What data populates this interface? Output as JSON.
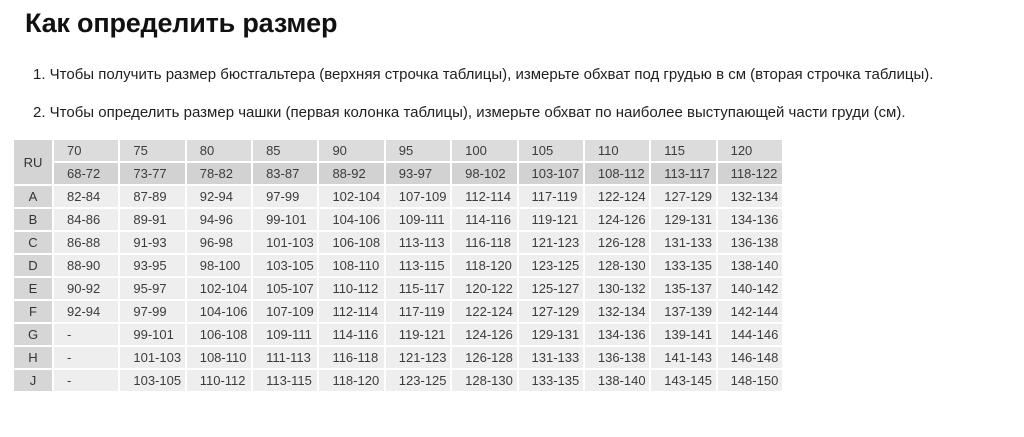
{
  "page": {
    "title": "Как определить размер"
  },
  "instructions": [
    "1. Чтобы получить размер бюстгальтера (верхняя строчка таблицы), измерьте обхват под грудью в см (вторая строчка таблицы).",
    "2. Чтобы определить размер чашки (первая колонка таблицы), измерьте обхват по наиболее выступающей части груди (см)."
  ],
  "size_table": {
    "corner_label": "RU",
    "band_sizes": [
      "70",
      "75",
      "80",
      "85",
      "90",
      "95",
      "100",
      "105",
      "110",
      "115",
      "120"
    ],
    "underbust_ranges": [
      "68-72",
      "73-77",
      "78-82",
      "83-87",
      "88-92",
      "93-97",
      "98-102",
      "103-107",
      "108-112",
      "113-117",
      "118-122"
    ],
    "cup_rows": [
      {
        "cup": "A",
        "values": [
          "82-84",
          "87-89",
          "92-94",
          "97-99",
          "102-104",
          "107-109",
          "112-114",
          "117-119",
          "122-124",
          "127-129",
          "132-134"
        ]
      },
      {
        "cup": "B",
        "values": [
          "84-86",
          "89-91",
          "94-96",
          "99-101",
          "104-106",
          "109-111",
          "114-116",
          "119-121",
          "124-126",
          "129-131",
          "134-136"
        ]
      },
      {
        "cup": "C",
        "values": [
          "86-88",
          "91-93",
          "96-98",
          "101-103",
          "106-108",
          "113-113",
          "116-118",
          "121-123",
          "126-128",
          "131-133",
          "136-138"
        ]
      },
      {
        "cup": "D",
        "values": [
          "88-90",
          "93-95",
          "98-100",
          "103-105",
          "108-110",
          "113-115",
          "118-120",
          "123-125",
          "128-130",
          "133-135",
          "138-140"
        ]
      },
      {
        "cup": "E",
        "values": [
          "90-92",
          "95-97",
          "102-104",
          "105-107",
          "110-112",
          "115-117",
          "120-122",
          "125-127",
          "130-132",
          "135-137",
          "140-142"
        ]
      },
      {
        "cup": "F",
        "values": [
          "92-94",
          "97-99",
          "104-106",
          "107-109",
          "112-114",
          "117-119",
          "122-124",
          "127-129",
          "132-134",
          "137-139",
          "142-144"
        ]
      },
      {
        "cup": "G",
        "values": [
          "-",
          "99-101",
          "106-108",
          "109-111",
          "114-116",
          "119-121",
          "124-126",
          "129-131",
          "134-136",
          "139-141",
          "144-146"
        ]
      },
      {
        "cup": "H",
        "values": [
          "-",
          "101-103",
          "108-110",
          "111-113",
          "116-118",
          "121-123",
          "126-128",
          "131-133",
          "136-138",
          "141-143",
          "146-148"
        ]
      },
      {
        "cup": "J",
        "values": [
          "-",
          "103-105",
          "110-112",
          "113-115",
          "118-120",
          "123-125",
          "128-130",
          "133-135",
          "138-140",
          "143-145",
          "148-150"
        ]
      }
    ]
  },
  "colors": {
    "page_background": "#ffffff",
    "header_row_bg": "#dcdcdc",
    "underbust_row_bg": "#d2d2d2",
    "cup_column_bg": "#d6d6d6",
    "data_cell_bg": "#eeeeee",
    "table_text": "#3c3c3c",
    "title_text": "#111111"
  }
}
